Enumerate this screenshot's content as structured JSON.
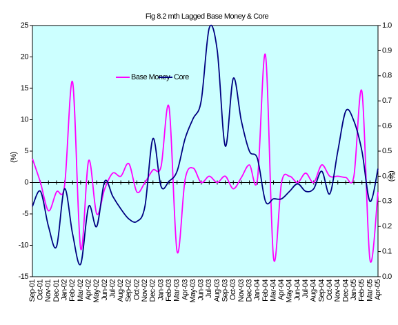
{
  "chart_data": {
    "type": "line",
    "title": "Fig 8.2 mth Lagged Base Money & Core",
    "ylabel": "(%)",
    "y2label": "(%)",
    "categories": [
      "Sep-01",
      "Oct-01",
      "Nov-01",
      "Dec-01",
      "Jan-02",
      "Feb-02",
      "Mar-02",
      "Apr-02",
      "May-02",
      "Jun-02",
      "Jul-02",
      "Aug-02",
      "Sep-02",
      "Oct-02",
      "Nov-02",
      "Dec-02",
      "Jan-03",
      "Feb-03",
      "Mar-03",
      "Apr-03",
      "May-03",
      "Jun-03",
      "Jul-03",
      "Aug-03",
      "Sep-03",
      "Oct-03",
      "Nov-03",
      "Dec-03",
      "Jan-04",
      "Feb-04",
      "Mar-04",
      "Apr-04",
      "May-04",
      "Jun-04",
      "Jul-04",
      "Aug-04",
      "Sep-04",
      "Oct-04",
      "Nov-04",
      "Dec-04",
      "Jan-05",
      "Feb-05",
      "Mar-05",
      "Apr-05"
    ],
    "series": [
      {
        "name": "Base Money",
        "color": "#ff00ff",
        "values": [
          3.8,
          0,
          -4.5,
          -1.5,
          -0.5,
          16,
          -10.5,
          3.5,
          -5,
          -1,
          1.5,
          1,
          3,
          -1.5,
          0,
          2,
          2.5,
          12,
          -11,
          0.5,
          2.3,
          0,
          1,
          0,
          1,
          -1,
          0.8,
          2.8,
          0.5,
          20.3,
          -12,
          0,
          1,
          0,
          1.5,
          0,
          2.8,
          1,
          1,
          0.8,
          1,
          14.5,
          -12.3,
          -1.5
        ]
      },
      {
        "name": "Core",
        "color": "#000080",
        "axis": "y2",
        "values": [
          0.28,
          0.34,
          0.2,
          0.12,
          0.35,
          0.17,
          0.05,
          0.28,
          0.2,
          0.38,
          0.32,
          0.27,
          0.23,
          0.22,
          0.28,
          0.55,
          0.36,
          0.38,
          0.42,
          0.55,
          0.63,
          0.7,
          0.99,
          0.9,
          0.52,
          0.79,
          0.62,
          0.5,
          0.47,
          0.3,
          0.31,
          0.31,
          0.34,
          0.37,
          0.34,
          0.35,
          0.42,
          0.33,
          0.5,
          0.66,
          0.62,
          0.5,
          0.3,
          0.43
        ]
      }
    ],
    "ylim": [
      -15,
      25
    ],
    "yticks": [
      -15,
      -10,
      -5,
      0,
      5,
      10,
      15,
      20,
      25
    ],
    "y2lim": [
      0,
      1
    ],
    "y2ticks": [
      {
        "value": 0,
        "label": "0.0"
      },
      {
        "value": 0.1,
        "label": "0.1"
      },
      {
        "value": 0.2,
        "label": "0.2"
      },
      {
        "value": 0.3,
        "label": "0.3"
      },
      {
        "value": 0.4,
        "label": "0.4"
      },
      {
        "value": 0.5,
        "label": "0.5"
      },
      {
        "value": 0.6,
        "label": "0.6"
      },
      {
        "value": 0.7,
        "label": "0.7"
      },
      {
        "value": 0.8,
        "label": "0.8"
      },
      {
        "value": 0.9,
        "label": "0.9"
      },
      {
        "value": 1,
        "label": "1.0"
      }
    ],
    "plot_background": "#ccffff"
  }
}
